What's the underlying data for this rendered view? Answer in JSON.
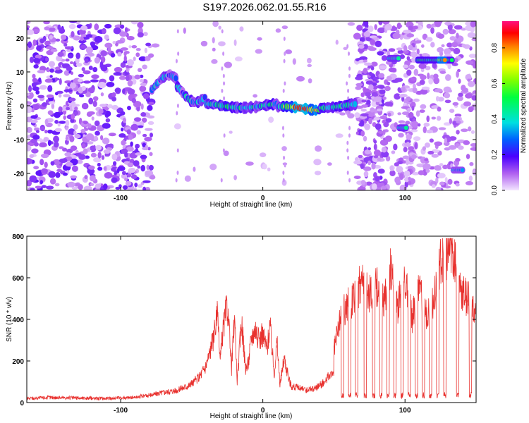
{
  "title": "S197.2026.062.01.55.R16",
  "chart_data": [
    {
      "type": "heatmap",
      "xlabel": "Height of straight line (km)",
      "ylabel": "Frequency (Hz)",
      "xlim": [
        -166,
        150
      ],
      "ylim": [
        -25,
        25
      ],
      "xticks": [
        -100,
        0,
        100
      ],
      "yticks": [
        -20,
        -10,
        0,
        10,
        20
      ],
      "colorbar": {
        "label": "Normalized spectral amplitude",
        "range": [
          0,
          0.95
        ],
        "ticks": [
          "0.0",
          "0.2",
          "0.4",
          "0.6",
          "0.8"
        ]
      },
      "features": [
        {
          "name": "noise-background",
          "x_range": [
            -166,
            -80
          ],
          "freq_range": [
            -25,
            25
          ],
          "amplitude": 0.1
        },
        {
          "name": "main-ridge",
          "x_range": [
            -80,
            68
          ],
          "freq_center": 0,
          "amplitude": 0.95
        },
        {
          "name": "tone-upper-1",
          "x_range": [
            88,
            96
          ],
          "freq_center": 14,
          "amplitude": 0.5
        },
        {
          "name": "tone-lower",
          "x_range": [
            95,
            101
          ],
          "freq_center": -6,
          "amplitude": 0.5
        },
        {
          "name": "tone-upper-2",
          "x_range": [
            108,
            134
          ],
          "freq_center": 14,
          "amplitude": 0.9
        },
        {
          "name": "tone-bottom",
          "x_range": [
            133,
            142
          ],
          "freq_center": -19,
          "amplitude": 0.4
        }
      ]
    },
    {
      "type": "line",
      "xlabel": "Height of straight line (km)",
      "ylabel": "SNR (10 * v/v)",
      "xlim": [
        -166,
        150
      ],
      "ylim": [
        0,
        800
      ],
      "xticks": [
        -100,
        0,
        100
      ],
      "yticks": [
        0,
        200,
        400,
        600,
        800
      ],
      "series": [
        {
          "name": "SNR",
          "color": "#e8312e",
          "x": [
            -166,
            -150,
            -130,
            -110,
            -90,
            -80,
            -70,
            -60,
            -50,
            -45,
            -40,
            -35,
            -32,
            -30,
            -28,
            -25,
            -22,
            -20,
            -18,
            -15,
            -12,
            -10,
            -8,
            -5,
            -3,
            0,
            3,
            5,
            8,
            10,
            12,
            15,
            18,
            20,
            25,
            30,
            35,
            40,
            45,
            50,
            55,
            60,
            65,
            70,
            75,
            80,
            85,
            90,
            95,
            100,
            105,
            110,
            115,
            120,
            125,
            130,
            135,
            140,
            145,
            150
          ],
          "values": [
            20,
            25,
            22,
            20,
            25,
            35,
            50,
            60,
            90,
            120,
            180,
            300,
            420,
            200,
            350,
            480,
            160,
            420,
            100,
            400,
            150,
            200,
            320,
            360,
            300,
            330,
            260,
            380,
            140,
            300,
            80,
            220,
            120,
            80,
            70,
            60,
            65,
            80,
            120,
            250,
            420,
            480,
            500,
            600,
            520,
            560,
            480,
            650,
            460,
            600,
            400,
            550,
            420,
            500,
            680,
            720,
            700,
            520,
            500,
            400
          ]
        }
      ]
    }
  ]
}
